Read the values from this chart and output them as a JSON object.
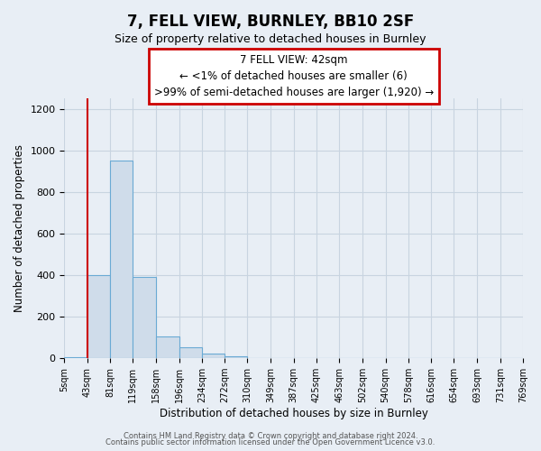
{
  "title": "7, FELL VIEW, BURNLEY, BB10 2SF",
  "subtitle": "Size of property relative to detached houses in Burnley",
  "xlabel": "Distribution of detached houses by size in Burnley",
  "ylabel": "Number of detached properties",
  "footer_line1": "Contains HM Land Registry data © Crown copyright and database right 2024.",
  "footer_line2": "Contains public sector information licensed under the Open Government Licence v3.0.",
  "bin_edges": [
    5,
    43,
    81,
    119,
    158,
    196,
    234,
    272,
    310,
    349,
    387,
    425,
    463,
    502,
    540,
    578,
    616,
    654,
    693,
    731,
    769
  ],
  "bin_labels": [
    "5sqm",
    "43sqm",
    "81sqm",
    "119sqm",
    "158sqm",
    "196sqm",
    "234sqm",
    "272sqm",
    "310sqm",
    "349sqm",
    "387sqm",
    "425sqm",
    "463sqm",
    "502sqm",
    "540sqm",
    "578sqm",
    "616sqm",
    "654sqm",
    "693sqm",
    "731sqm",
    "769sqm"
  ],
  "bar_heights": [
    6,
    400,
    950,
    390,
    105,
    55,
    22,
    8,
    0,
    2,
    0,
    2,
    0,
    1,
    0,
    0,
    0,
    0,
    0,
    0
  ],
  "bar_color": "#cfdcea",
  "bar_edge_color": "#6aaad4",
  "grid_color": "#c8d4e0",
  "background_color": "#e8eef5",
  "red_line_x": 43,
  "annotation_title": "7 FELL VIEW: 42sqm",
  "annotation_line1": "← <1% of detached houses are smaller (6)",
  "annotation_line2": ">99% of semi-detached houses are larger (1,920) →",
  "annotation_box_color": "#ffffff",
  "annotation_box_edge": "#cc0000",
  "ylim": [
    0,
    1250
  ],
  "yticks": [
    0,
    200,
    400,
    600,
    800,
    1000,
    1200
  ]
}
